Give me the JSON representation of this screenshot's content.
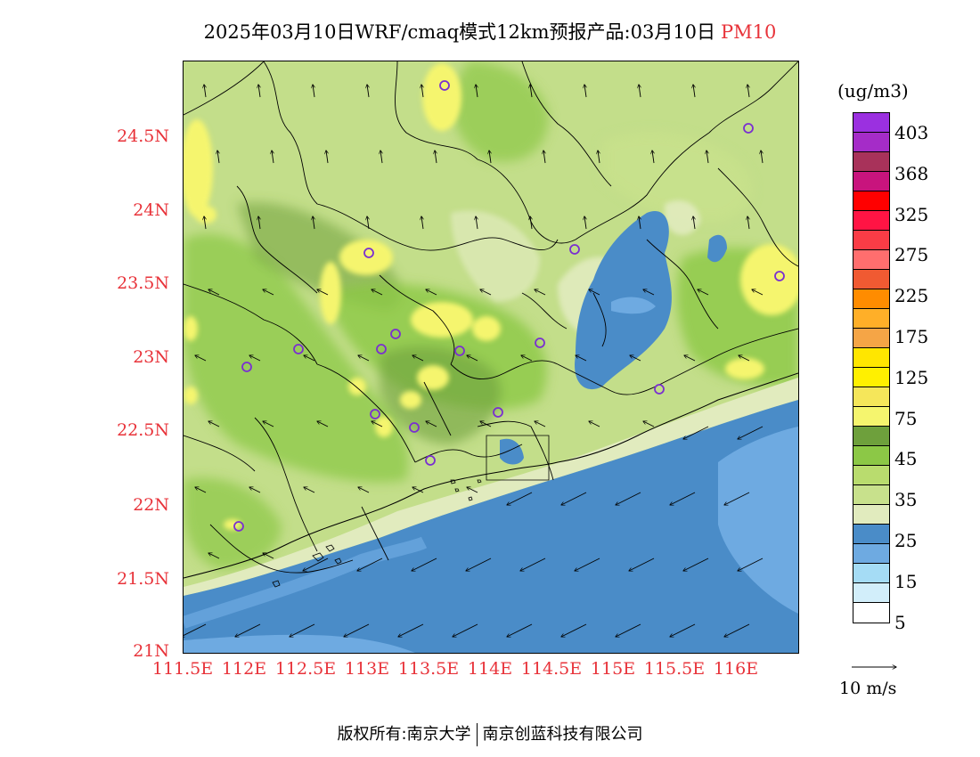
{
  "title": {
    "text": "2025年03月10日WRF/cmaq模式12km预报产品:03月10日",
    "pollutant": "PM10",
    "pollutant_color": "#e8333a"
  },
  "axes": {
    "lat_labels": [
      "24.5N",
      "24N",
      "23.5N",
      "23N",
      "22.5N",
      "22N",
      "21.5N",
      "21N"
    ],
    "lon_labels": [
      "111.5E",
      "112E",
      "112.5E",
      "113E",
      "113.5E",
      "114E",
      "114.5E",
      "115E",
      "115.5E",
      "116E"
    ],
    "label_color": "#e8333a"
  },
  "legend": {
    "unit": "(ug/m3)",
    "labels": [
      "403",
      "368",
      "325",
      "275",
      "225",
      "175",
      "125",
      "75",
      "45",
      "35",
      "25",
      "15",
      "5"
    ],
    "colors": [
      "#9b30e0",
      "#a52cc8",
      "#a8325a",
      "#c8147d",
      "#ff0000",
      "#ff1444",
      "#fa3c46",
      "#ff6e6e",
      "#f05a32",
      "#ff8c00",
      "#ffaf28",
      "#f5a546",
      "#ffe600",
      "#fff000",
      "#f5e65a",
      "#f5f56e",
      "#6ea03c",
      "#8cc846",
      "#b9dc6e",
      "#c8e18c",
      "#e1ebbe",
      "#4a8cc8",
      "#6eaae1",
      "#a5dcf5",
      "#d2eefa",
      "#ffffff"
    ]
  },
  "wind_reference": {
    "label": "10 m/s"
  },
  "map": {
    "land_color": "#c3de8a",
    "sea_color": "#4a8cc8",
    "coast_band_color": "#e1ebbe",
    "site_marker_color": "#7a2fd0"
  },
  "copyright": {
    "left": "版权所有:南京大学",
    "right": "南京创蓝科技有限公司"
  }
}
